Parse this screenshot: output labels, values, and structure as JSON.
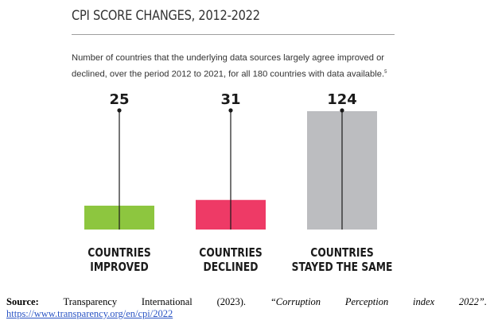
{
  "title": "CPI SCORE CHANGES, 2012-2022",
  "subtitle": "Number of countries that the underlying data sources largely agree improved or declined, over the period 2012 to 2021, for all 180 countries with data available.",
  "subtitle_note": "5",
  "chart_data": {
    "type": "bar",
    "categories": [
      "COUNTRIES IMPROVED",
      "COUNTRIES DECLINED",
      "COUNTRIES STAYED THE SAME"
    ],
    "category_lines": [
      [
        "COUNTRIES",
        "IMPROVED"
      ],
      [
        "COUNTRIES",
        "DECLINED"
      ],
      [
        "COUNTRIES",
        "STAYED THE SAME"
      ]
    ],
    "values": [
      25,
      31,
      124
    ],
    "colors": [
      "#8dc63f",
      "#ee3a66",
      "#bcbdc0"
    ],
    "ylim": [
      0,
      124
    ]
  },
  "source": {
    "label": "Source:",
    "words": [
      "Transparency",
      "International",
      "(2023)."
    ],
    "citation_words": [
      "“Corruption",
      "Perception",
      "index",
      "2022”."
    ],
    "url": "https://www.transparency.org/en/cpi/2022"
  }
}
